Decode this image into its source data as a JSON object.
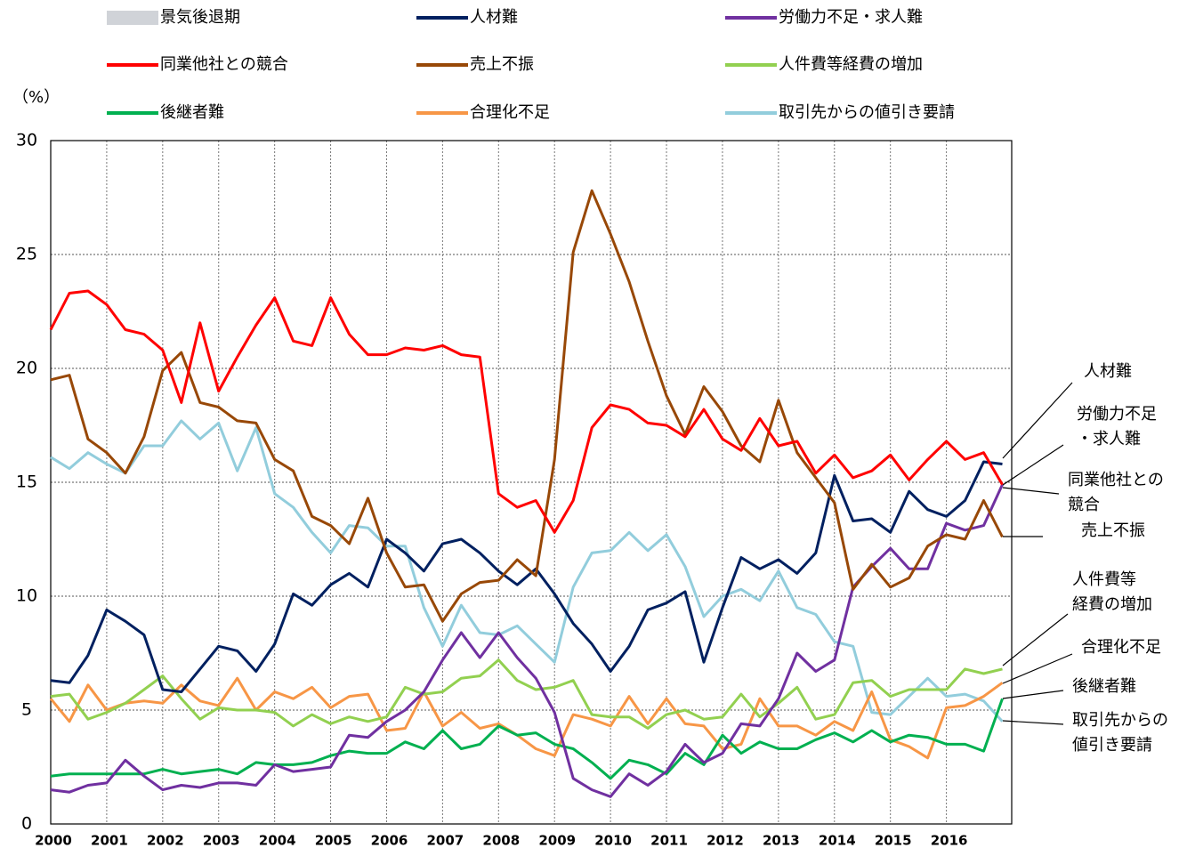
{
  "chart_data": {
    "type": "line",
    "y_axis_label": "（%）",
    "recession_legend": {
      "label": "景気後退期",
      "color": "#d0d3d8"
    },
    "categories": [
      "2000",
      null,
      null,
      "2001",
      null,
      null,
      "2002",
      null,
      null,
      "2003",
      null,
      null,
      "2004",
      null,
      null,
      "2005",
      null,
      null,
      "2006",
      null,
      null,
      "2007",
      null,
      null,
      "2008",
      null,
      null,
      "2009",
      null,
      null,
      "2010",
      null,
      null,
      "2011",
      null,
      null,
      "2012",
      null,
      null,
      "2013",
      null,
      null,
      "2014",
      null,
      null,
      "2015",
      null,
      null,
      "2016",
      null,
      null,
      null
    ],
    "ylim": [
      0,
      30
    ],
    "yticks": [
      0,
      5,
      10,
      15,
      20,
      25,
      30
    ],
    "grid": true,
    "series": [
      {
        "name": "人材難",
        "color": "#002060",
        "values": [
          6.3,
          6.2,
          7.4,
          9.4,
          8.9,
          8.3,
          5.9,
          5.8,
          6.8,
          7.8,
          7.6,
          6.7,
          7.9,
          10.1,
          9.6,
          10.5,
          11.0,
          10.4,
          12.5,
          11.9,
          11.1,
          12.3,
          12.5,
          11.9,
          11.1,
          10.5,
          11.2,
          10.1,
          8.8,
          7.9,
          6.7,
          7.8,
          9.4,
          9.7,
          10.2,
          7.1,
          9.5,
          11.7,
          11.2,
          11.6,
          11.0,
          11.9,
          15.3,
          13.3,
          13.4,
          12.8,
          14.6,
          13.8,
          13.5,
          14.2,
          15.9,
          15.8
        ]
      },
      {
        "name": "労働力不足・求人難",
        "color": "#7030a0",
        "values": [
          1.5,
          1.4,
          1.7,
          1.8,
          2.8,
          2.1,
          1.5,
          1.7,
          1.6,
          1.8,
          1.8,
          1.7,
          2.6,
          2.3,
          2.4,
          2.5,
          3.9,
          3.8,
          4.5,
          5.0,
          5.8,
          7.2,
          8.4,
          7.3,
          8.4,
          7.3,
          6.4,
          4.9,
          2.0,
          1.5,
          1.2,
          2.2,
          1.7,
          2.3,
          3.5,
          2.7,
          3.1,
          4.4,
          4.3,
          5.5,
          7.5,
          6.7,
          7.2,
          10.4,
          11.3,
          12.1,
          11.2,
          11.2,
          13.2,
          12.9,
          13.1,
          14.9
        ]
      },
      {
        "name": "同業他社との競合",
        "color": "#ff0000",
        "values": [
          21.7,
          23.3,
          23.4,
          22.8,
          21.7,
          21.5,
          20.8,
          18.5,
          22.0,
          19.0,
          20.5,
          21.9,
          23.1,
          21.2,
          21.0,
          23.1,
          21.5,
          20.6,
          20.6,
          20.9,
          20.8,
          21.0,
          20.6,
          20.5,
          14.5,
          13.9,
          14.2,
          12.8,
          14.2,
          17.4,
          18.4,
          18.2,
          17.6,
          17.5,
          17.0,
          18.2,
          16.9,
          16.4,
          17.8,
          16.6,
          16.8,
          15.4,
          16.2,
          15.2,
          15.5,
          16.2,
          15.1,
          16.0,
          16.8,
          16.0,
          16.3,
          14.9
        ]
      },
      {
        "name": "売上不振",
        "color": "#984807",
        "values": [
          19.5,
          19.7,
          16.9,
          16.3,
          15.4,
          17.0,
          19.9,
          20.7,
          18.5,
          18.3,
          17.7,
          17.6,
          16.0,
          15.5,
          13.5,
          13.1,
          12.3,
          14.3,
          11.9,
          10.4,
          10.5,
          8.9,
          10.1,
          10.6,
          10.7,
          11.6,
          10.9,
          16.0,
          25.1,
          27.8,
          25.9,
          23.8,
          21.2,
          18.8,
          17.1,
          19.2,
          18.1,
          16.6,
          15.9,
          18.6,
          16.3,
          15.2,
          14.1,
          10.3,
          11.4,
          10.4,
          10.8,
          12.2,
          12.7,
          12.5,
          14.2,
          12.6
        ]
      },
      {
        "name": "人件費等経費の増加",
        "color": "#92d050",
        "values": [
          5.6,
          5.7,
          4.6,
          4.9,
          5.3,
          5.9,
          6.5,
          5.5,
          4.6,
          5.1,
          5.0,
          5.0,
          4.9,
          4.3,
          4.8,
          4.4,
          4.7,
          4.5,
          4.7,
          6.0,
          5.7,
          5.8,
          6.4,
          6.5,
          7.2,
          6.3,
          5.9,
          6.0,
          6.3,
          4.8,
          4.7,
          4.7,
          4.2,
          4.8,
          5.0,
          4.6,
          4.7,
          5.7,
          4.7,
          5.3,
          6.0,
          4.6,
          4.8,
          6.2,
          6.3,
          5.6,
          5.9,
          5.9,
          5.9,
          6.8,
          6.6,
          6.8
        ]
      },
      {
        "name": "後継者難",
        "color": "#00b050",
        "values": [
          2.1,
          2.2,
          2.2,
          2.2,
          2.2,
          2.2,
          2.4,
          2.2,
          2.3,
          2.4,
          2.2,
          2.7,
          2.6,
          2.6,
          2.7,
          3.0,
          3.2,
          3.1,
          3.1,
          3.6,
          3.3,
          4.1,
          3.3,
          3.5,
          4.3,
          3.9,
          4.0,
          3.5,
          3.3,
          2.7,
          2.0,
          2.8,
          2.6,
          2.2,
          3.1,
          2.6,
          3.9,
          3.1,
          3.6,
          3.3,
          3.3,
          3.7,
          4.0,
          3.6,
          4.1,
          3.6,
          3.9,
          3.8,
          3.5,
          3.5,
          3.2,
          5.5
        ]
      },
      {
        "name": "合理化不足",
        "color": "#f79646",
        "values": [
          5.5,
          4.5,
          6.1,
          5.0,
          5.3,
          5.4,
          5.3,
          6.1,
          5.4,
          5.2,
          6.4,
          5.0,
          5.8,
          5.5,
          6.0,
          5.1,
          5.6,
          5.7,
          4.1,
          4.2,
          5.8,
          4.3,
          4.9,
          4.2,
          4.4,
          3.9,
          3.3,
          3.0,
          4.8,
          4.6,
          4.3,
          5.6,
          4.4,
          5.5,
          4.4,
          4.3,
          3.3,
          3.5,
          5.5,
          4.3,
          4.3,
          3.9,
          4.5,
          4.1,
          5.8,
          3.7,
          3.4,
          2.9,
          5.1,
          5.2,
          5.6,
          6.2
        ]
      },
      {
        "name": "取引先からの値引き要請",
        "color": "#92cddc",
        "values": [
          16.1,
          15.6,
          16.3,
          15.8,
          15.4,
          16.6,
          16.6,
          17.7,
          16.9,
          17.6,
          15.5,
          17.4,
          14.5,
          13.9,
          12.8,
          11.9,
          13.1,
          13.0,
          12.2,
          12.2,
          9.5,
          7.8,
          9.6,
          8.4,
          8.3,
          8.7,
          7.9,
          7.1,
          10.4,
          11.9,
          12.0,
          12.8,
          12.0,
          12.7,
          11.3,
          9.1,
          10.0,
          10.3,
          9.8,
          11.1,
          9.5,
          9.2,
          8.0,
          7.8,
          4.9,
          4.8,
          5.6,
          6.4,
          5.6,
          5.7,
          5.4,
          4.5
        ]
      }
    ],
    "annotations": [
      [
        "人材難"
      ],
      [
        "労働力不足",
        "・求人難"
      ],
      [
        "同業他社との",
        "競合"
      ],
      [
        "売上不振"
      ],
      [
        "人件費等",
        "経費の増加"
      ],
      [
        "合理化不足"
      ],
      [
        "後継者難"
      ],
      [
        "取引先からの",
        "値引き要請"
      ]
    ]
  }
}
